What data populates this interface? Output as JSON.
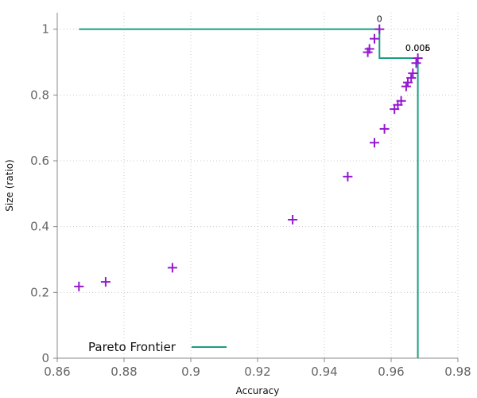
{
  "chart_data": {
    "type": "scatter",
    "title": "",
    "xlabel": "Accuracy",
    "ylabel": "Size (ratio)",
    "xlim": [
      0.86,
      0.98
    ],
    "ylim": [
      0,
      1.05
    ],
    "xticks": [
      0.86,
      0.88,
      0.9,
      0.92,
      0.94,
      0.96,
      0.98
    ],
    "xtick_labels": [
      "0.86",
      "0.88",
      "0.9",
      "0.92",
      "0.94",
      "0.96",
      "0.98"
    ],
    "yticks": [
      0,
      0.2,
      0.4,
      0.6,
      0.8,
      1
    ],
    "ytick_labels": [
      "0",
      "0.2",
      "0.4",
      "0.6",
      "0.8",
      "1"
    ],
    "grid": true,
    "legend_position": "bottom-left",
    "colors": {
      "points": "#9418d0",
      "frontier": "#1a9f7e"
    },
    "points": [
      {
        "x": 0.8665,
        "y": 0.218
      },
      {
        "x": 0.8745,
        "y": 0.232
      },
      {
        "x": 0.8945,
        "y": 0.275
      },
      {
        "x": 0.9305,
        "y": 0.421
      },
      {
        "x": 0.947,
        "y": 0.552
      },
      {
        "x": 0.955,
        "y": 0.655
      },
      {
        "x": 0.958,
        "y": 0.697
      },
      {
        "x": 0.961,
        "y": 0.757
      },
      {
        "x": 0.962,
        "y": 0.77
      },
      {
        "x": 0.963,
        "y": 0.782
      },
      {
        "x": 0.9645,
        "y": 0.826
      },
      {
        "x": 0.965,
        "y": 0.838
      },
      {
        "x": 0.966,
        "y": 0.852
      },
      {
        "x": 0.9665,
        "y": 0.866
      },
      {
        "x": 0.9675,
        "y": 0.897
      },
      {
        "x": 0.968,
        "y": 0.912
      },
      {
        "x": 0.953,
        "y": 0.93
      },
      {
        "x": 0.9535,
        "y": 0.94
      },
      {
        "x": 0.955,
        "y": 0.971
      },
      {
        "x": 0.9565,
        "y": 1.0
      }
    ],
    "frontier": {
      "name": "Pareto Frontier",
      "x": [
        0.8665,
        0.9565,
        0.9565,
        0.968,
        0.968
      ],
      "y": [
        1.0,
        1.0,
        0.912,
        0.912,
        0.0
      ]
    },
    "annotations": [
      {
        "text": "0",
        "x": 0.9565,
        "y": 1.0
      },
      {
        "text": "0.005",
        "x": 0.968,
        "y": 0.912
      },
      {
        "text": "0.006",
        "x": 0.968,
        "y": 0.912
      }
    ]
  }
}
